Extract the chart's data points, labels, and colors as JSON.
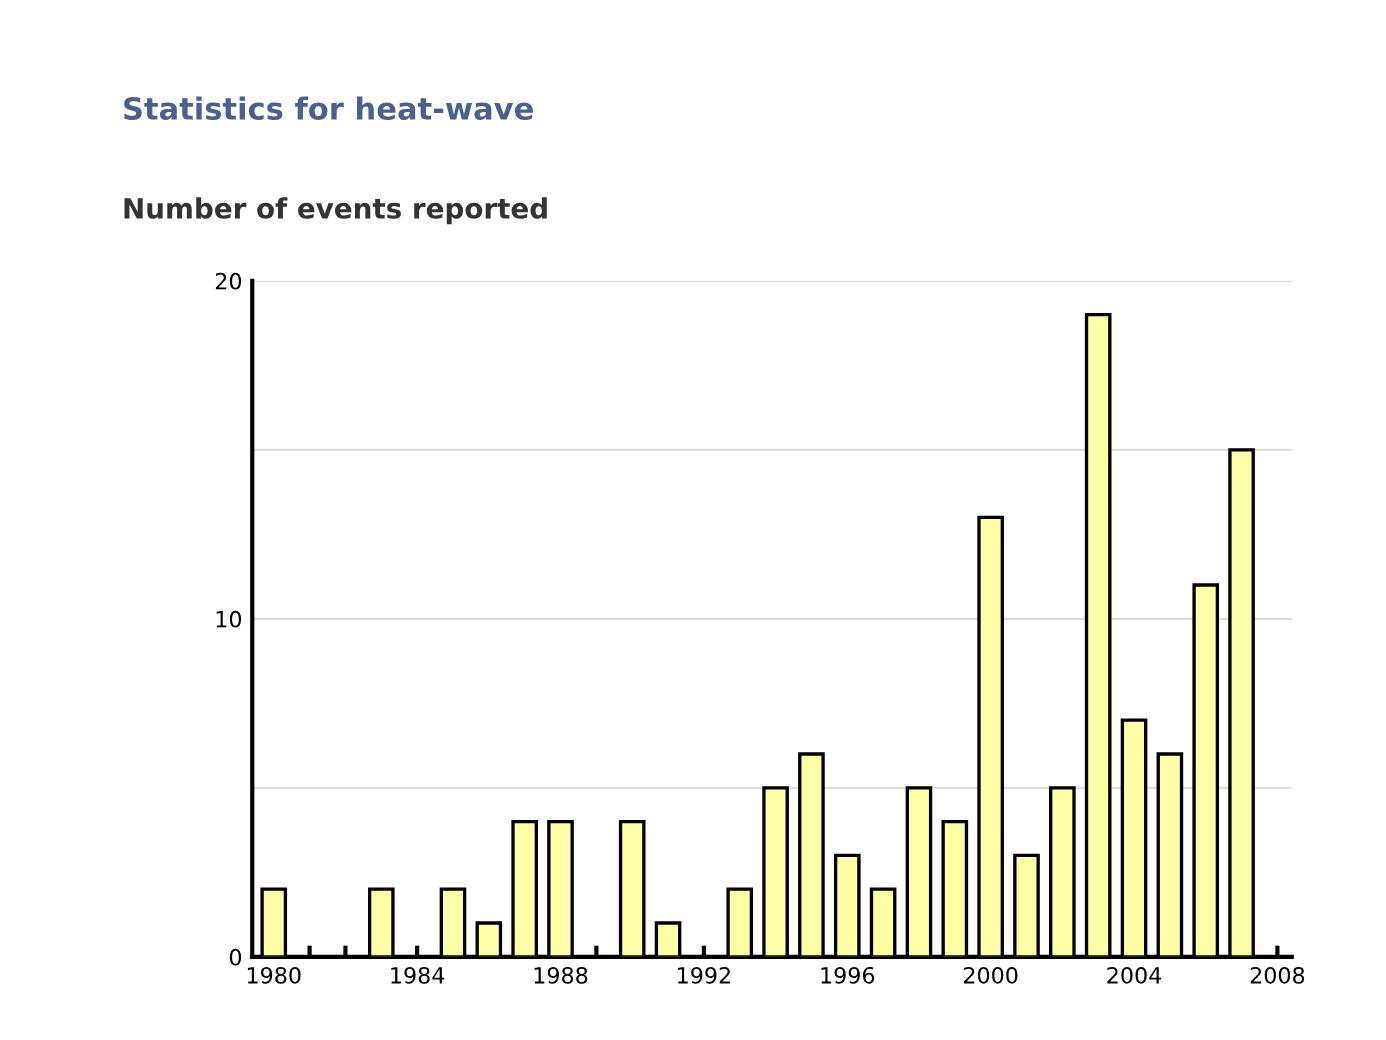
{
  "chart_data": {
    "type": "bar",
    "title": "Statistics for heat-wave",
    "subtitle": "Number of events reported",
    "x": [
      1980,
      1983,
      1985,
      1986,
      1987,
      1988,
      1990,
      1991,
      1993,
      1994,
      1995,
      1996,
      1997,
      1998,
      1999,
      2000,
      2001,
      2002,
      2003,
      2004,
      2005,
      2006,
      2007
    ],
    "values": [
      2,
      2,
      2,
      1,
      4,
      4,
      4,
      1,
      2,
      5,
      6,
      3,
      2,
      5,
      4,
      13,
      3,
      5,
      19,
      7,
      6,
      11,
      15
    ],
    "color": "#ffffa8",
    "xlim": [
      1979.4,
      2008.4
    ],
    "xticks": [
      1980,
      {
        "value": 1981,
        "label": null
      },
      {
        "value": 1982,
        "label": null
      },
      {
        "value": 1983,
        "label": null
      },
      1984,
      {
        "value": 1985,
        "label": null
      },
      {
        "value": 1986,
        "label": null
      },
      {
        "value": 1987,
        "label": null
      },
      1988,
      {
        "value": 1989,
        "label": null
      },
      {
        "value": 1990,
        "label": null
      },
      {
        "value": 1991,
        "label": null
      },
      1992,
      {
        "value": 1993,
        "label": null
      },
      {
        "value": 1994,
        "label": null
      },
      {
        "value": 1995,
        "label": null
      },
      1996,
      {
        "value": 1997,
        "label": null
      },
      {
        "value": 1998,
        "label": null
      },
      {
        "value": 1999,
        "label": null
      },
      2000,
      {
        "value": 2001,
        "label": null
      },
      {
        "value": 2002,
        "label": null
      },
      {
        "value": 2003,
        "label": null
      },
      2004,
      {
        "value": 2005,
        "label": null
      },
      {
        "value": 2006,
        "label": null
      },
      {
        "value": 2007,
        "label": null
      },
      2008
    ],
    "ylim": [
      0,
      20
    ],
    "yticks": [
      0,
      {
        "value": 5,
        "label": null
      },
      10,
      {
        "value": 15,
        "label": null
      },
      20
    ],
    "grid": "y",
    "legend": false
  }
}
